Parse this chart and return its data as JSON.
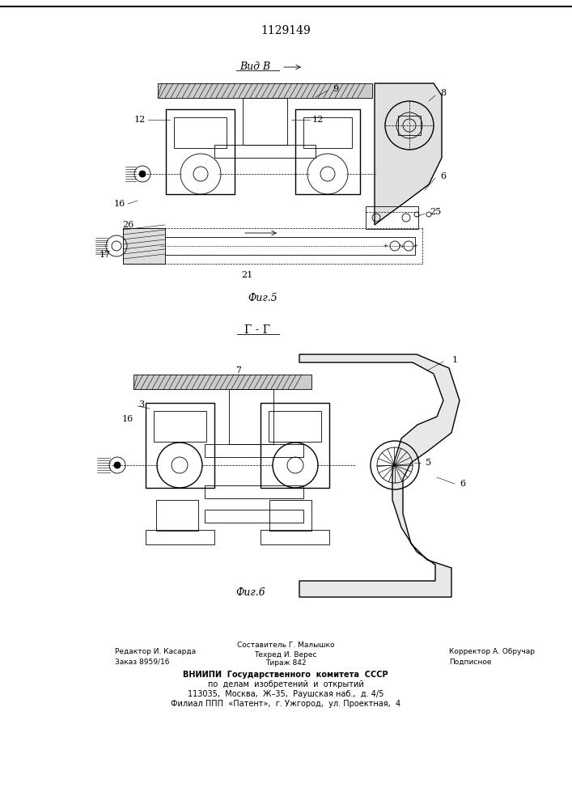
{
  "patent_number": "1129149",
  "fig5_label": "Вид В",
  "fig5_caption": "Фиг.5",
  "fig6_section": "Г - Г",
  "fig6_caption": "Фиг.6",
  "footer_left_line1": "Редактор И. Касарда",
  "footer_left_line2": "Заказ 8959/16",
  "footer_center_line0": "Составитель Г. Малышко",
  "footer_center_line1": "Техред И. Верес",
  "footer_center_line2": "Тираж 842",
  "footer_right_line1": "Корректор А. Обручар",
  "footer_right_line2": "Подписное",
  "footer_vniiipi_line1": "ВНИИПИ  Государственного  комитета  СССР",
  "footer_vniiipi_line2": "по  делам  изобретений  и  открытий",
  "footer_vniiipi_line3": "113035,  Москва,  Ж–35,  Раушская наб.,  д. 4/5",
  "footer_vniiipi_line4": "Филиал ППП  «Патент»,  г. Ужгород,  ул. Проектная,  4",
  "bg_color": "#ffffff",
  "line_color": "#000000"
}
